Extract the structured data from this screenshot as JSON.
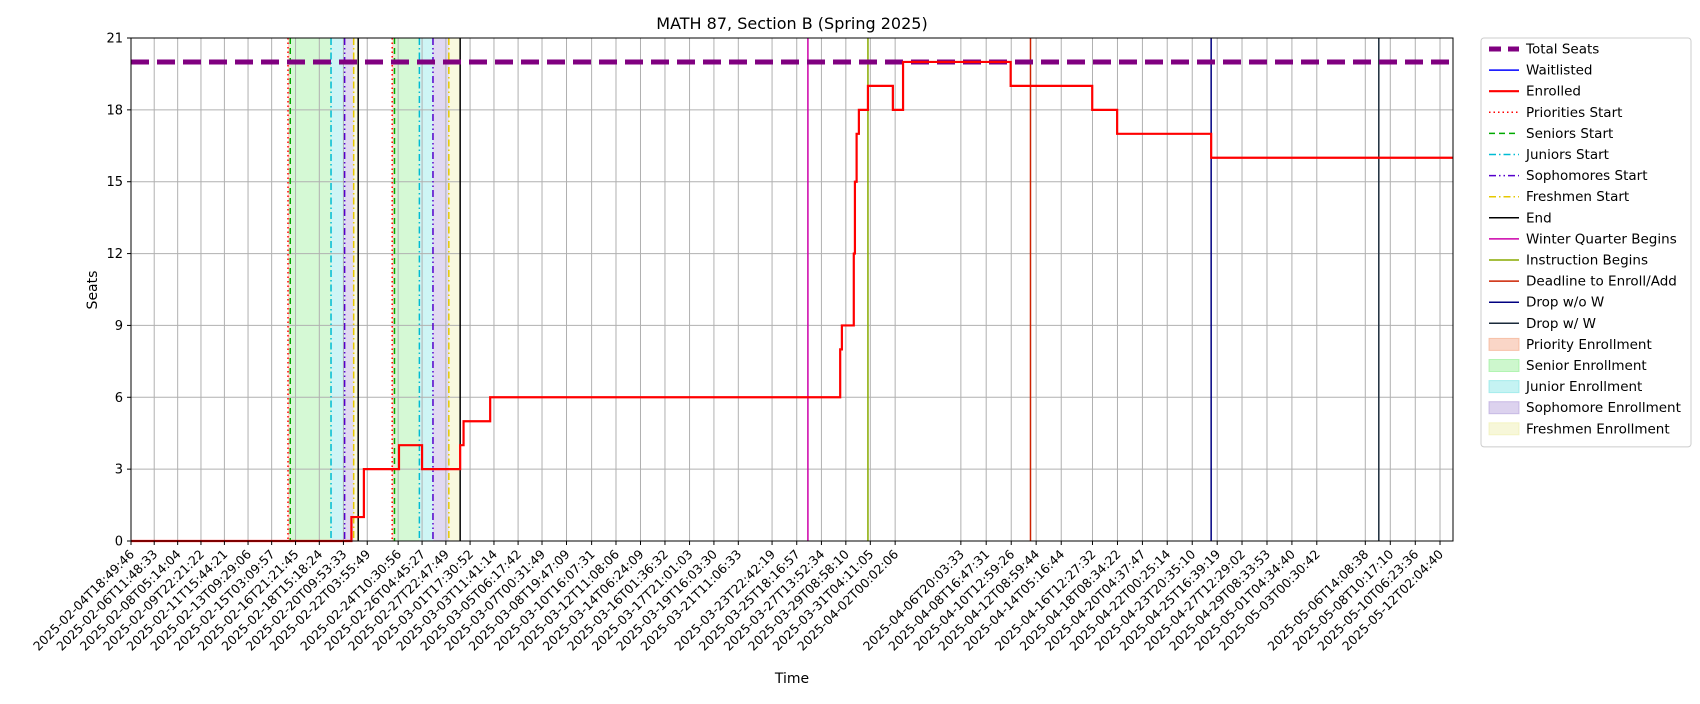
{
  "chart_data": {
    "type": "line",
    "title": "MATH 87, Section B (Spring 2025)",
    "xlabel": "Time",
    "ylabel": "Seats",
    "x_type": "datetime",
    "xlim": [
      "2025-02-04T18:49:46",
      "2025-05-13T01:00:00"
    ],
    "ylim": [
      0,
      21
    ],
    "yticks": [
      0,
      3,
      6,
      9,
      12,
      15,
      18,
      21
    ],
    "xticks": [
      "2025-02-04T18:49:46",
      "2025-02-06T11:48:33",
      "2025-02-08T05:14:04",
      "2025-02-09T22:21:22",
      "2025-02-11T15:44:21",
      "2025-02-13T09:29:06",
      "2025-02-15T03:09:57",
      "2025-02-16T21:21:45",
      "2025-02-18T15:18:24",
      "2025-02-20T09:53:33",
      "2025-02-22T03:55:49",
      "2025-02-24T10:30:56",
      "2025-02-26T04:45:27",
      "2025-02-27T22:47:49",
      "2025-03-01T17:30:52",
      "2025-03-03T11:41:14",
      "2025-03-05T06:17:42",
      "2025-03-07T00:31:49",
      "2025-03-08T19:47:09",
      "2025-03-10T16:07:31",
      "2025-03-12T11:08:06",
      "2025-03-14T06:24:09",
      "2025-03-16T01:36:32",
      "2025-03-17T21:01:03",
      "2025-03-19T16:03:30",
      "2025-03-21T11:06:33",
      "2025-03-23T22:42:19",
      "2025-03-25T18:16:57",
      "2025-03-27T13:52:34",
      "2025-03-29T08:58:10",
      "2025-03-31T04:11:05",
      "2025-04-02T00:02:06",
      "2025-04-06T20:03:33",
      "2025-04-08T16:47:31",
      "2025-04-10T12:59:26",
      "2025-04-12T08:59:44",
      "2025-04-14T05:16:44",
      "2025-04-16T12:27:32",
      "2025-04-18T08:34:22",
      "2025-04-20T04:37:47",
      "2025-04-22T00:25:14",
      "2025-04-23T20:35:10",
      "2025-04-25T16:39:19",
      "2025-04-27T12:29:02",
      "2025-04-29T08:33:53",
      "2025-05-01T04:34:40",
      "2025-05-03T00:30:42",
      "2025-05-06T14:08:38",
      "2025-05-08T10:17:10",
      "2025-05-10T06:23:36",
      "2025-05-12T02:04:40"
    ],
    "grid": true,
    "legend_position": "outside-right",
    "series": [
      {
        "name": "Total Seats",
        "color": "#800080",
        "style": "dashed",
        "points": [
          [
            "2025-02-04T18:49:46",
            20
          ],
          [
            "2025-05-13T01:00:00",
            20
          ]
        ]
      },
      {
        "name": "Waitlisted",
        "color": "#0000ff",
        "style": "solid",
        "points": []
      },
      {
        "name": "Enrolled",
        "color": "#ff0000",
        "style": "step",
        "points": [
          [
            "2025-02-04T18:49:46",
            0
          ],
          [
            "2025-02-21T00:00:00",
            1
          ],
          [
            "2025-02-21T22:00:00",
            3
          ],
          [
            "2025-02-24T12:00:00",
            4
          ],
          [
            "2025-02-26T04:45:00",
            3
          ],
          [
            "2025-03-01T00:00:00",
            4
          ],
          [
            "2025-03-01T06:00:00",
            5
          ],
          [
            "2025-03-03T05:00:00",
            6
          ],
          [
            "2025-03-28T23:00:00",
            8
          ],
          [
            "2025-03-29T02:00:00",
            9
          ],
          [
            "2025-03-29T23:00:00",
            12
          ],
          [
            "2025-03-30T01:00:00",
            15
          ],
          [
            "2025-03-30T04:00:00",
            17
          ],
          [
            "2025-03-30T08:00:00",
            18
          ],
          [
            "2025-03-31T00:00:00",
            19
          ],
          [
            "2025-04-01T20:00:00",
            18
          ],
          [
            "2025-04-02T14:00:00",
            20
          ],
          [
            "2025-04-10T12:00:00",
            19
          ],
          [
            "2025-04-16T12:00:00",
            18
          ],
          [
            "2025-04-18T08:00:00",
            17
          ],
          [
            "2025-04-25T06:00:00",
            16
          ],
          [
            "2025-05-13T01:00:00",
            16
          ]
        ]
      }
    ],
    "vertical_events": [
      {
        "name": "Priorities Start",
        "color": "#ff0000",
        "style": "dotted",
        "times": [
          "2025-02-16T08:00:00",
          "2025-02-24T00:00:00"
        ]
      },
      {
        "name": "Seniors Start",
        "color": "#00aa00",
        "style": "dashed",
        "times": [
          "2025-02-16T12:00:00",
          "2025-02-24T04:00:00"
        ]
      },
      {
        "name": "Juniors Start",
        "color": "#00bcd4",
        "style": "dashdot",
        "times": [
          "2025-02-19T12:00:00",
          "2025-02-26T00:00:00"
        ]
      },
      {
        "name": "Sophomores Start",
        "color": "#5500cc",
        "style": "dashdotdot",
        "times": [
          "2025-02-20T12:00:00",
          "2025-02-27T00:00:00"
        ]
      },
      {
        "name": "Freshmen Start",
        "color": "#e6c800",
        "style": "dashdot",
        "times": [
          "2025-02-21T04:00:00",
          "2025-02-28T04:00:00"
        ]
      },
      {
        "name": "End",
        "color": "#000000",
        "style": "solid",
        "times": [
          "2025-02-21T12:00:00",
          "2025-03-01T00:00:00"
        ]
      },
      {
        "name": "Winter Quarter Begins",
        "color": "#cc00aa",
        "style": "solid",
        "times": [
          "2025-03-26T14:00:00"
        ]
      },
      {
        "name": "Instruction Begins",
        "color": "#88aa00",
        "style": "solid",
        "times": [
          "2025-03-31T00:00:00"
        ]
      },
      {
        "name": "Deadline to Enroll/Add",
        "color": "#cc2200",
        "style": "solid",
        "times": [
          "2025-04-11T23:00:00"
        ]
      },
      {
        "name": "Drop w/o W",
        "color": "#000080",
        "style": "solid",
        "times": [
          "2025-04-25T06:00:00"
        ]
      },
      {
        "name": "Drop w/ W",
        "color": "#1a2a3a",
        "style": "solid",
        "times": [
          "2025-05-07T14:00:00"
        ]
      }
    ],
    "shaded_windows": [
      {
        "name": "Priority Enrollment",
        "color": "#f4a582",
        "ranges": [
          [
            "2025-02-16T08:00:00",
            "2025-02-16T12:00:00"
          ],
          [
            "2025-02-24T00:00:00",
            "2025-02-24T04:00:00"
          ]
        ]
      },
      {
        "name": "Senior Enrollment",
        "color": "#90ee90",
        "ranges": [
          [
            "2025-02-16T12:00:00",
            "2025-02-19T12:00:00"
          ],
          [
            "2025-02-24T04:00:00",
            "2025-02-26T00:00:00"
          ]
        ]
      },
      {
        "name": "Junior Enrollment",
        "color": "#7fe5e5",
        "ranges": [
          [
            "2025-02-19T12:00:00",
            "2025-02-20T12:00:00"
          ],
          [
            "2025-02-26T00:00:00",
            "2025-02-27T00:00:00"
          ]
        ]
      },
      {
        "name": "Sophomore Enrollment",
        "color": "#b19cd9",
        "ranges": [
          [
            "2025-02-20T12:00:00",
            "2025-02-21T04:00:00"
          ],
          [
            "2025-02-27T00:00:00",
            "2025-02-28T04:00:00"
          ]
        ]
      },
      {
        "name": "Freshmen Enrollment",
        "color": "#eeeeaa",
        "ranges": [
          [
            "2025-02-21T04:00:00",
            "2025-02-21T12:00:00"
          ],
          [
            "2025-02-28T04:00:00",
            "2025-03-01T00:00:00"
          ]
        ]
      }
    ],
    "legend": [
      {
        "label": "Total Seats",
        "kind": "line",
        "color": "#800080",
        "style": "dashed-thick"
      },
      {
        "label": "Waitlisted",
        "kind": "line",
        "color": "#0000ff",
        "style": "solid"
      },
      {
        "label": "Enrolled",
        "kind": "line",
        "color": "#ff0000",
        "style": "solid-thick"
      },
      {
        "label": "Priorities Start",
        "kind": "line",
        "color": "#ff0000",
        "style": "dotted"
      },
      {
        "label": "Seniors Start",
        "kind": "line",
        "color": "#00aa00",
        "style": "dashed"
      },
      {
        "label": "Juniors Start",
        "kind": "line",
        "color": "#00bcd4",
        "style": "dashdot"
      },
      {
        "label": "Sophomores Start",
        "kind": "line",
        "color": "#5500cc",
        "style": "dashdotdot"
      },
      {
        "label": "Freshmen Start",
        "kind": "line",
        "color": "#e6c800",
        "style": "dashdot"
      },
      {
        "label": "End",
        "kind": "line",
        "color": "#000000",
        "style": "solid"
      },
      {
        "label": "Winter Quarter Begins",
        "kind": "line",
        "color": "#cc00aa",
        "style": "solid"
      },
      {
        "label": "Instruction Begins",
        "kind": "line",
        "color": "#88aa00",
        "style": "solid"
      },
      {
        "label": "Deadline to Enroll/Add",
        "kind": "line",
        "color": "#cc2200",
        "style": "solid"
      },
      {
        "label": "Drop w/o W",
        "kind": "line",
        "color": "#000080",
        "style": "solid"
      },
      {
        "label": "Drop w/ W",
        "kind": "line",
        "color": "#1a2a3a",
        "style": "solid"
      },
      {
        "label": "Priority Enrollment",
        "kind": "patch",
        "color": "#f4a582"
      },
      {
        "label": "Senior Enrollment",
        "kind": "patch",
        "color": "#90ee90"
      },
      {
        "label": "Junior Enrollment",
        "kind": "patch",
        "color": "#7fe5e5"
      },
      {
        "label": "Sophomore Enrollment",
        "kind": "patch",
        "color": "#b19cd9"
      },
      {
        "label": "Freshmen Enrollment",
        "kind": "patch",
        "color": "#eeeeaa"
      }
    ]
  }
}
